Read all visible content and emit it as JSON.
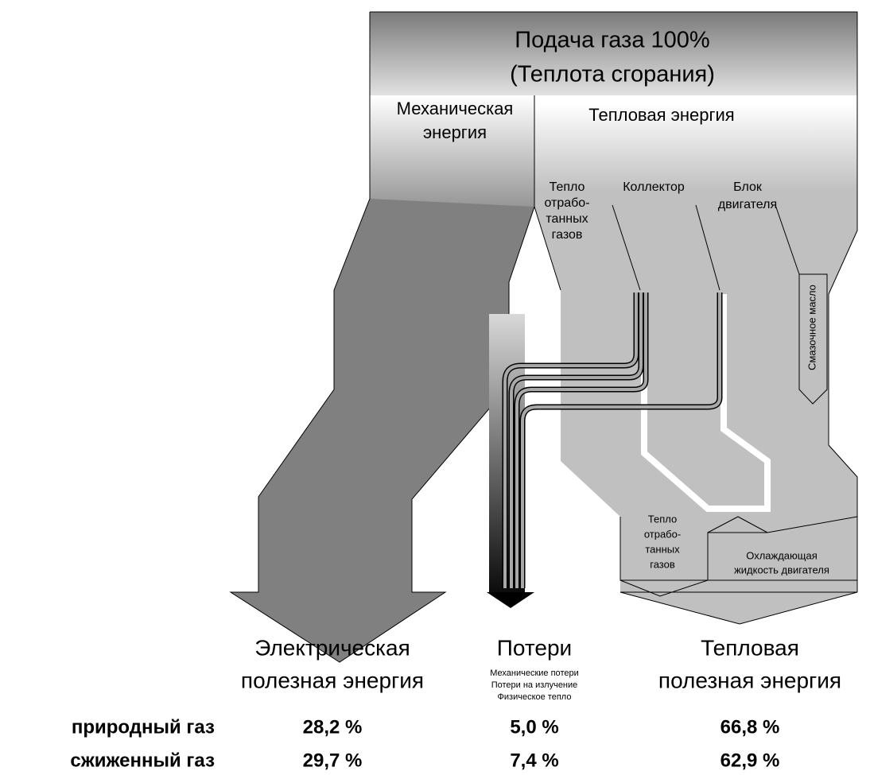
{
  "header": {
    "title": [
      "Подача газа 100%",
      "(Теплота сгорания)"
    ]
  },
  "flows": {
    "mechanical": [
      "Механическая",
      "энергия"
    ],
    "thermal": "Тепловая энергия",
    "exhaust": [
      "Тепло",
      "отрабо-",
      "танных",
      "газов"
    ],
    "collector": "Коллектор",
    "engine_block": [
      "Блок",
      "двигателя"
    ],
    "lube_oil": "Смазочное масло",
    "exhaust_out": [
      "Тепло",
      "отрабо-",
      "танных",
      "газов"
    ],
    "coolant": [
      "Охлаждающая",
      "жидкость двигателя"
    ]
  },
  "outputs": {
    "electric": [
      "Электрическая",
      "полезная энергия"
    ],
    "losses": "Потери",
    "loss_items": [
      "Механические потери",
      "Потери на излучение",
      "Физическое тепло"
    ],
    "thermal": [
      "Тепловая",
      "полезная энергия"
    ]
  },
  "table": {
    "rows": [
      [
        "природный газ",
        "28,2 %",
        "5,0 %",
        "66,8 %"
      ],
      [
        "сжиженный газ",
        "29,7 %",
        "7,4 %",
        "62,9 %"
      ]
    ]
  }
}
